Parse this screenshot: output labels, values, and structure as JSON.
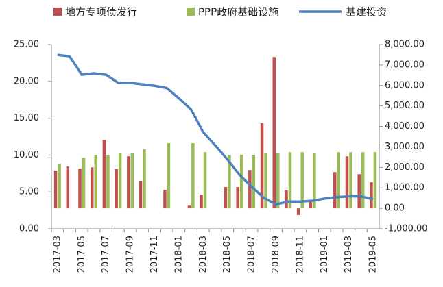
{
  "chart_data": {
    "type": "bar-line",
    "categories": [
      "2017-03",
      null,
      "2017-05",
      null,
      "2017-07",
      null,
      "2017-09",
      null,
      "2017-11",
      null,
      "2018-01",
      null,
      "2018-03",
      null,
      "2018-05",
      null,
      "2018-07",
      null,
      "2018-09",
      null,
      "2018-11",
      null,
      "2019-01",
      null,
      "2019-03",
      null,
      "2019-05"
    ],
    "series": [
      {
        "name": "地方专项债发行",
        "color": "#c0504d",
        "type": "bar",
        "axis": "y2",
        "values": [
          1840,
          2040,
          1940,
          2000,
          3340,
          1940,
          2540,
          1340,
          null,
          900,
          null,
          130,
          670,
          null,
          1040,
          1040,
          1870,
          4150,
          7390,
          870,
          -330,
          370,
          null,
          1770,
          2540,
          1670,
          1270
        ]
      },
      {
        "name": "PPP政府基础设施",
        "color": "#9bbb59",
        "type": "bar",
        "axis": "y2",
        "values": [
          2170,
          null,
          2470,
          2610,
          2610,
          2680,
          2680,
          2880,
          null,
          3180,
          null,
          3180,
          2740,
          null,
          2610,
          2610,
          2610,
          2680,
          2680,
          2740,
          2740,
          2680,
          null,
          2740,
          2740,
          2740,
          2740
        ]
      },
      {
        "name": "基建投资",
        "color": "#4f81bd",
        "type": "line",
        "values": [
          23.6,
          23.4,
          20.9,
          21.1,
          20.9,
          19.8,
          19.8,
          19.6,
          19.4,
          19.1,
          17.7,
          16.2,
          13.1,
          11.3,
          9.4,
          7.3,
          5.7,
          4.2,
          3.3,
          3.7,
          3.7,
          3.8,
          4.1,
          4.3,
          4.4,
          4.4,
          4.0
        ]
      }
    ],
    "ylim": [
      0,
      25
    ],
    "yticks": [
      {
        "value": 0,
        "label": "0.00"
      },
      {
        "value": 5,
        "label": "5.00"
      },
      {
        "value": 10,
        "label": "10.00"
      },
      {
        "value": 15,
        "label": "15.00"
      },
      {
        "value": 20,
        "label": "20.00"
      },
      {
        "value": 25,
        "label": "25.00"
      }
    ],
    "y2lim": [
      -1000,
      8000
    ],
    "y2ticks": [
      {
        "value": -1000,
        "label": "-1,000.00"
      },
      {
        "value": 0,
        "label": "0.00"
      },
      {
        "value": 1000,
        "label": "1,000.00"
      },
      {
        "value": 2000,
        "label": "2,000.00"
      },
      {
        "value": 3000,
        "label": "3,000.00"
      },
      {
        "value": 4000,
        "label": "4,000.00"
      },
      {
        "value": 5000,
        "label": "5,000.00"
      },
      {
        "value": 6000,
        "label": "6,000.00"
      },
      {
        "value": 7000,
        "label": "7,000.00"
      },
      {
        "value": 8000,
        "label": "8,000.00"
      }
    ],
    "legend": "top",
    "grid": false
  }
}
